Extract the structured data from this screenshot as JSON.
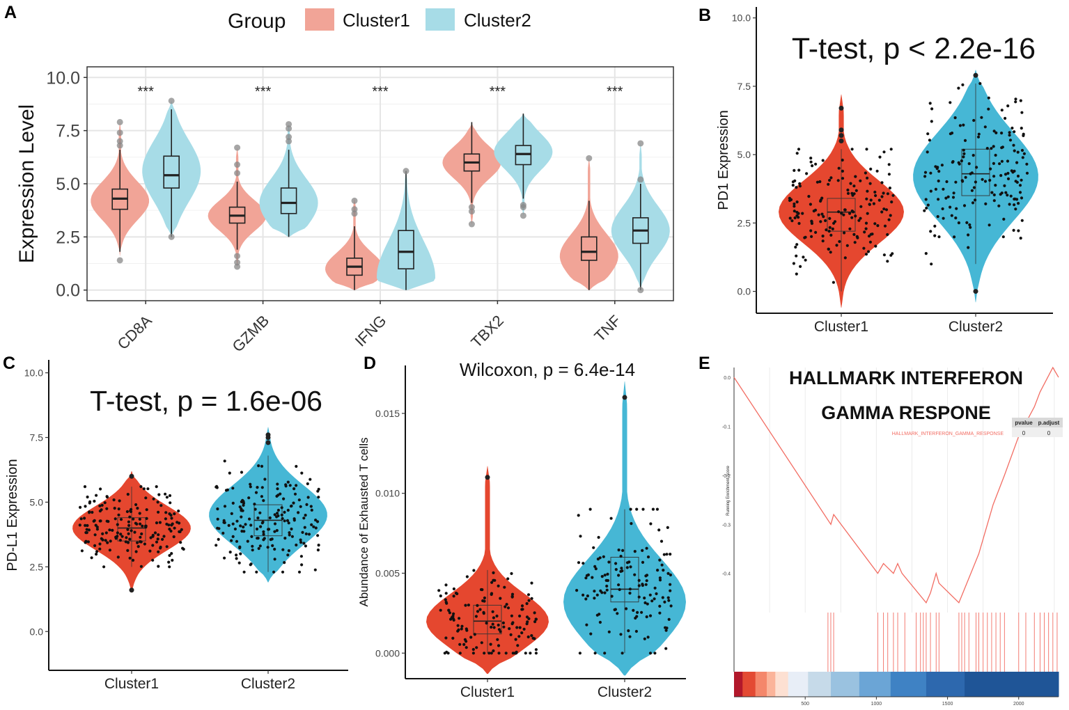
{
  "colors": {
    "c1_light": "#F1A497",
    "c2_light": "#A7DCE7",
    "c1_dark": "#E5472F",
    "c2_dark": "#46B7D5",
    "grid": "#E5E5E5",
    "gsea_line": "#F26D63"
  },
  "chart_data": [
    {
      "panel": "A",
      "type": "violin",
      "legend": {
        "title": "Group",
        "entries": [
          "Cluster1",
          "Cluster2"
        ],
        "position": "top"
      },
      "ylabel": "Expression Level",
      "ylim": [
        -0.5,
        10.5
      ],
      "yticks": [
        "0.0",
        "2.5",
        "5.0",
        "7.5",
        "10.0"
      ],
      "categories": [
        "CD8A",
        "GZMB",
        "IFNG",
        "TBX2",
        "TNF"
      ],
      "significance": [
        "***",
        "***",
        "***",
        "***",
        "***"
      ],
      "series": [
        {
          "name": "Cluster1",
          "groups": [
            {
              "min": 1.8,
              "q1": 3.8,
              "median": 4.3,
              "q3": 4.75,
              "max": 6.6,
              "vmin": 1.6,
              "vmax": 7.9,
              "mode": 4.2,
              "outliers": [
                1.4,
                6.8,
                7.0,
                7.4,
                7.9
              ]
            },
            {
              "min": 1.9,
              "q1": 3.15,
              "median": 3.5,
              "q3": 3.9,
              "max": 5.1,
              "vmin": 1.1,
              "vmax": 6.7,
              "mode": 3.5,
              "outliers": [
                1.1,
                1.3,
                1.6,
                5.5,
                5.9,
                6.7
              ]
            },
            {
              "min": 0.0,
              "q1": 0.7,
              "median": 1.1,
              "q3": 1.5,
              "max": 3.0,
              "vmin": 0.0,
              "vmax": 4.3,
              "mode": 1.0,
              "outliers": [
                3.6,
                3.8,
                4.2
              ]
            },
            {
              "min": 4.1,
              "q1": 5.6,
              "median": 6.0,
              "q3": 6.4,
              "max": 7.9,
              "vmin": 3.1,
              "vmax": 7.9,
              "mode": 6.0,
              "outliers": [
                3.1,
                3.7,
                3.9
              ]
            },
            {
              "min": 0.0,
              "q1": 1.4,
              "median": 1.8,
              "q3": 2.5,
              "max": 4.2,
              "vmin": 0.0,
              "vmax": 6.2,
              "mode": 1.6,
              "outliers": [
                6.2
              ]
            }
          ]
        },
        {
          "name": "Cluster2",
          "groups": [
            {
              "min": 2.5,
              "q1": 4.8,
              "median": 5.4,
              "q3": 6.3,
              "max": 8.5,
              "vmin": 2.5,
              "vmax": 8.9,
              "mode": 5.6,
              "outliers": [
                2.5,
                8.9
              ]
            },
            {
              "min": 2.5,
              "q1": 3.6,
              "median": 4.1,
              "q3": 4.8,
              "max": 6.6,
              "vmin": 2.5,
              "vmax": 7.8,
              "mode": 4.1,
              "outliers": [
                7.0,
                7.2,
                7.6,
                7.8
              ]
            },
            {
              "min": 0.0,
              "q1": 1.0,
              "median": 1.8,
              "q3": 2.8,
              "max": 5.6,
              "vmin": 0.0,
              "vmax": 5.6,
              "mode": 0.6,
              "outliers": [
                5.6
              ]
            },
            {
              "min": 4.3,
              "q1": 5.9,
              "median": 6.4,
              "q3": 6.8,
              "max": 8.3,
              "vmin": 3.5,
              "vmax": 8.3,
              "mode": 6.5,
              "outliers": [
                3.5,
                3.9,
                4.0
              ]
            },
            {
              "min": 0.0,
              "q1": 2.2,
              "median": 2.8,
              "q3": 3.4,
              "max": 5.0,
              "vmin": 0.0,
              "vmax": 6.9,
              "mode": 2.8,
              "outliers": [
                0.0,
                5.2,
                6.9
              ]
            }
          ]
        }
      ]
    },
    {
      "panel": "B",
      "type": "violin",
      "title": "T-test, p < 2.2e-16",
      "ylabel": "PD1 Expression",
      "ylim": [
        -0.8,
        10.4
      ],
      "yticks": [
        "0.0",
        "2.5",
        "5.0",
        "7.5",
        "10.0"
      ],
      "categories": [
        "Cluster1",
        "Cluster2"
      ],
      "groups": [
        {
          "min": 0.0,
          "q1": 2.2,
          "median": 2.9,
          "q3": 3.4,
          "max": 5.2,
          "vmin": -0.6,
          "vmax": 7.2,
          "mode": 2.9,
          "outliers": [
            5.5,
            5.7,
            5.9,
            6.7
          ]
        },
        {
          "min": 1.0,
          "q1": 3.5,
          "median": 4.3,
          "q3": 5.2,
          "max": 7.6,
          "vmin": -0.4,
          "vmax": 8.1,
          "mode": 4.2,
          "outliers": [
            0.0,
            7.9
          ]
        }
      ]
    },
    {
      "panel": "C",
      "type": "violin",
      "title": "T-test, p = 1.6e-06",
      "ylabel": "PD-L1 Expression",
      "ylim": [
        -1.5,
        10.5
      ],
      "yticks": [
        "0.0",
        "2.5",
        "5.0",
        "7.5",
        "10.0"
      ],
      "categories": [
        "Cluster1",
        "Cluster2"
      ],
      "groups": [
        {
          "min": 2.5,
          "q1": 3.5,
          "median": 4.0,
          "q3": 4.4,
          "max": 5.6,
          "vmin": 1.5,
          "vmax": 6.2,
          "mode": 4.0,
          "outliers": [
            1.6,
            6.0
          ]
        },
        {
          "min": 2.3,
          "q1": 3.7,
          "median": 4.3,
          "q3": 4.9,
          "max": 6.8,
          "vmin": 1.9,
          "vmax": 7.9,
          "mode": 4.5,
          "outliers": [
            7.3,
            7.5,
            7.6
          ]
        }
      ]
    },
    {
      "panel": "D",
      "type": "violin",
      "title": "Wilcoxon, p = 6.4e-14",
      "ylabel": "Abundance of Exhausted T cells",
      "ylim": [
        -0.0016,
        0.018
      ],
      "yticks": [
        "0.000",
        "0.005",
        "0.010",
        "0.015"
      ],
      "categories": [
        "Cluster1",
        "Cluster2"
      ],
      "groups": [
        {
          "min": 0.0,
          "q1": 0.0012,
          "median": 0.002,
          "q3": 0.003,
          "max": 0.0052,
          "vmin": -0.0013,
          "vmax": 0.0117,
          "mode": 0.002,
          "outliers": [
            0.011
          ]
        },
        {
          "min": 0.0,
          "q1": 0.0032,
          "median": 0.004,
          "q3": 0.006,
          "max": 0.009,
          "vmin": -0.0014,
          "vmax": 0.017,
          "mode": 0.0032,
          "outliers": [
            0.016
          ]
        }
      ]
    },
    {
      "panel": "E",
      "type": "line",
      "title": [
        "HALLMARK INTERFERON",
        "GAMMA RESPONE"
      ],
      "ylabel": "Running Enrichment Score",
      "ylim": [
        -0.48,
        0.02
      ],
      "yticks": [
        "0.0",
        "-0.1",
        "-0.2",
        "-0.3",
        "-0.4"
      ],
      "xlim": [
        0,
        2280
      ],
      "xticks": [
        "500",
        "1000",
        "1500",
        "2000"
      ],
      "table": {
        "headers": [
          "pvalue",
          "p.adjust"
        ],
        "row_label": "HALLMARK_INTERFERON_GAMMA_RESPONSE",
        "values": [
          "0",
          "0"
        ]
      },
      "hits": [
        660,
        680,
        700,
        1010,
        1050,
        1080,
        1120,
        1150,
        1200,
        1280,
        1310,
        1330,
        1350,
        1380,
        1420,
        1440,
        1580,
        1600,
        1620,
        1650,
        1700,
        1720,
        1750,
        1780,
        1810,
        1840,
        1870,
        1900,
        2000,
        2050,
        2110,
        2150,
        2180,
        2210,
        2240,
        2270
      ],
      "es_path": [
        [
          0,
          0.0
        ],
        [
          680,
          -0.3
        ],
        [
          700,
          -0.28
        ],
        [
          1010,
          -0.4
        ],
        [
          1050,
          -0.38
        ],
        [
          1120,
          -0.4
        ],
        [
          1150,
          -0.38
        ],
        [
          1180,
          -0.4
        ],
        [
          1350,
          -0.46
        ],
        [
          1380,
          -0.44
        ],
        [
          1420,
          -0.4
        ],
        [
          1440,
          -0.42
        ],
        [
          1580,
          -0.46
        ],
        [
          1720,
          -0.36
        ],
        [
          1780,
          -0.3
        ],
        [
          1820,
          -0.26
        ],
        [
          1900,
          -0.2
        ],
        [
          2000,
          -0.12
        ],
        [
          2110,
          -0.06
        ],
        [
          2150,
          -0.03
        ],
        [
          2240,
          0.02
        ],
        [
          2280,
          0.0
        ]
      ],
      "ranked_colors": [
        "#B2182B",
        "#E34A33",
        "#F4876B",
        "#FBB49A",
        "#FDE0D2",
        "#E8EEF7",
        "#C6DAE9",
        "#9AC2E0",
        "#6BA5D6",
        "#3F82C4",
        "#2D68AE",
        "#1F5597"
      ]
    }
  ],
  "panels": {
    "A": "A",
    "B": "B",
    "C": "C",
    "D": "D",
    "E": "E"
  }
}
